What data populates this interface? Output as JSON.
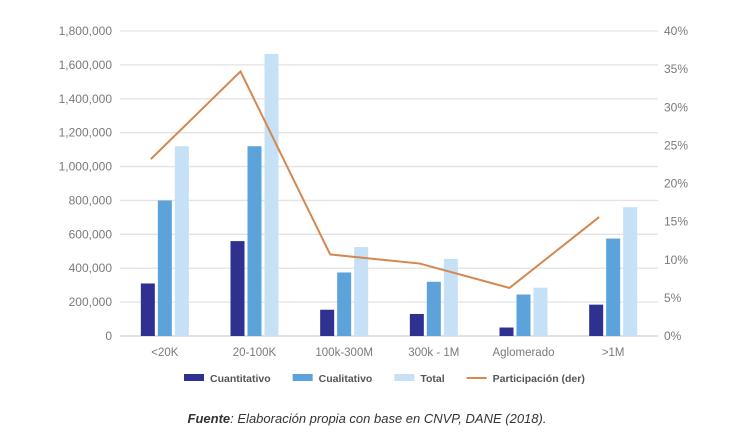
{
  "chart_data": {
    "type": "bar",
    "categories": [
      "<20K",
      "20-100K",
      "100k-300M",
      "300k - 1M",
      "Aglomerado",
      ">1M"
    ],
    "series": [
      {
        "name": "Cuantitativo",
        "type": "bar",
        "axis": "left",
        "color": "#2f3190",
        "values": [
          310000,
          560000,
          155000,
          130000,
          50000,
          185000
        ]
      },
      {
        "name": "Cualitativo",
        "type": "bar",
        "axis": "left",
        "color": "#5ba3da",
        "values": [
          800000,
          1120000,
          375000,
          320000,
          245000,
          575000
        ]
      },
      {
        "name": "Total",
        "type": "bar",
        "axis": "left",
        "color": "#c6e1f6",
        "values": [
          1120000,
          1665000,
          525000,
          455000,
          285000,
          760000
        ]
      },
      {
        "name": "Participación (der)",
        "type": "line",
        "axis": "right",
        "color": "#d4874f",
        "values": [
          23.2,
          34.7,
          10.7,
          9.5,
          6.3,
          15.6
        ]
      }
    ],
    "ylim": [
      0,
      1800000
    ],
    "y_ticks": [
      "0",
      "200,000",
      "400,000",
      "600,000",
      "800,000",
      "1,000,000",
      "1,200,000",
      "1,400,000",
      "1,600,000",
      "1,800,000"
    ],
    "y2lim": [
      0,
      40
    ],
    "y2_ticks": [
      "0%",
      "5%",
      "10%",
      "15%",
      "20%",
      "25%",
      "30%",
      "35%",
      "40%"
    ],
    "grid": true,
    "legend_placement": "bottom"
  },
  "caption": {
    "bold": "Fuente",
    "text": ": Elaboración propia con base en CNVP, DANE (2018)."
  }
}
